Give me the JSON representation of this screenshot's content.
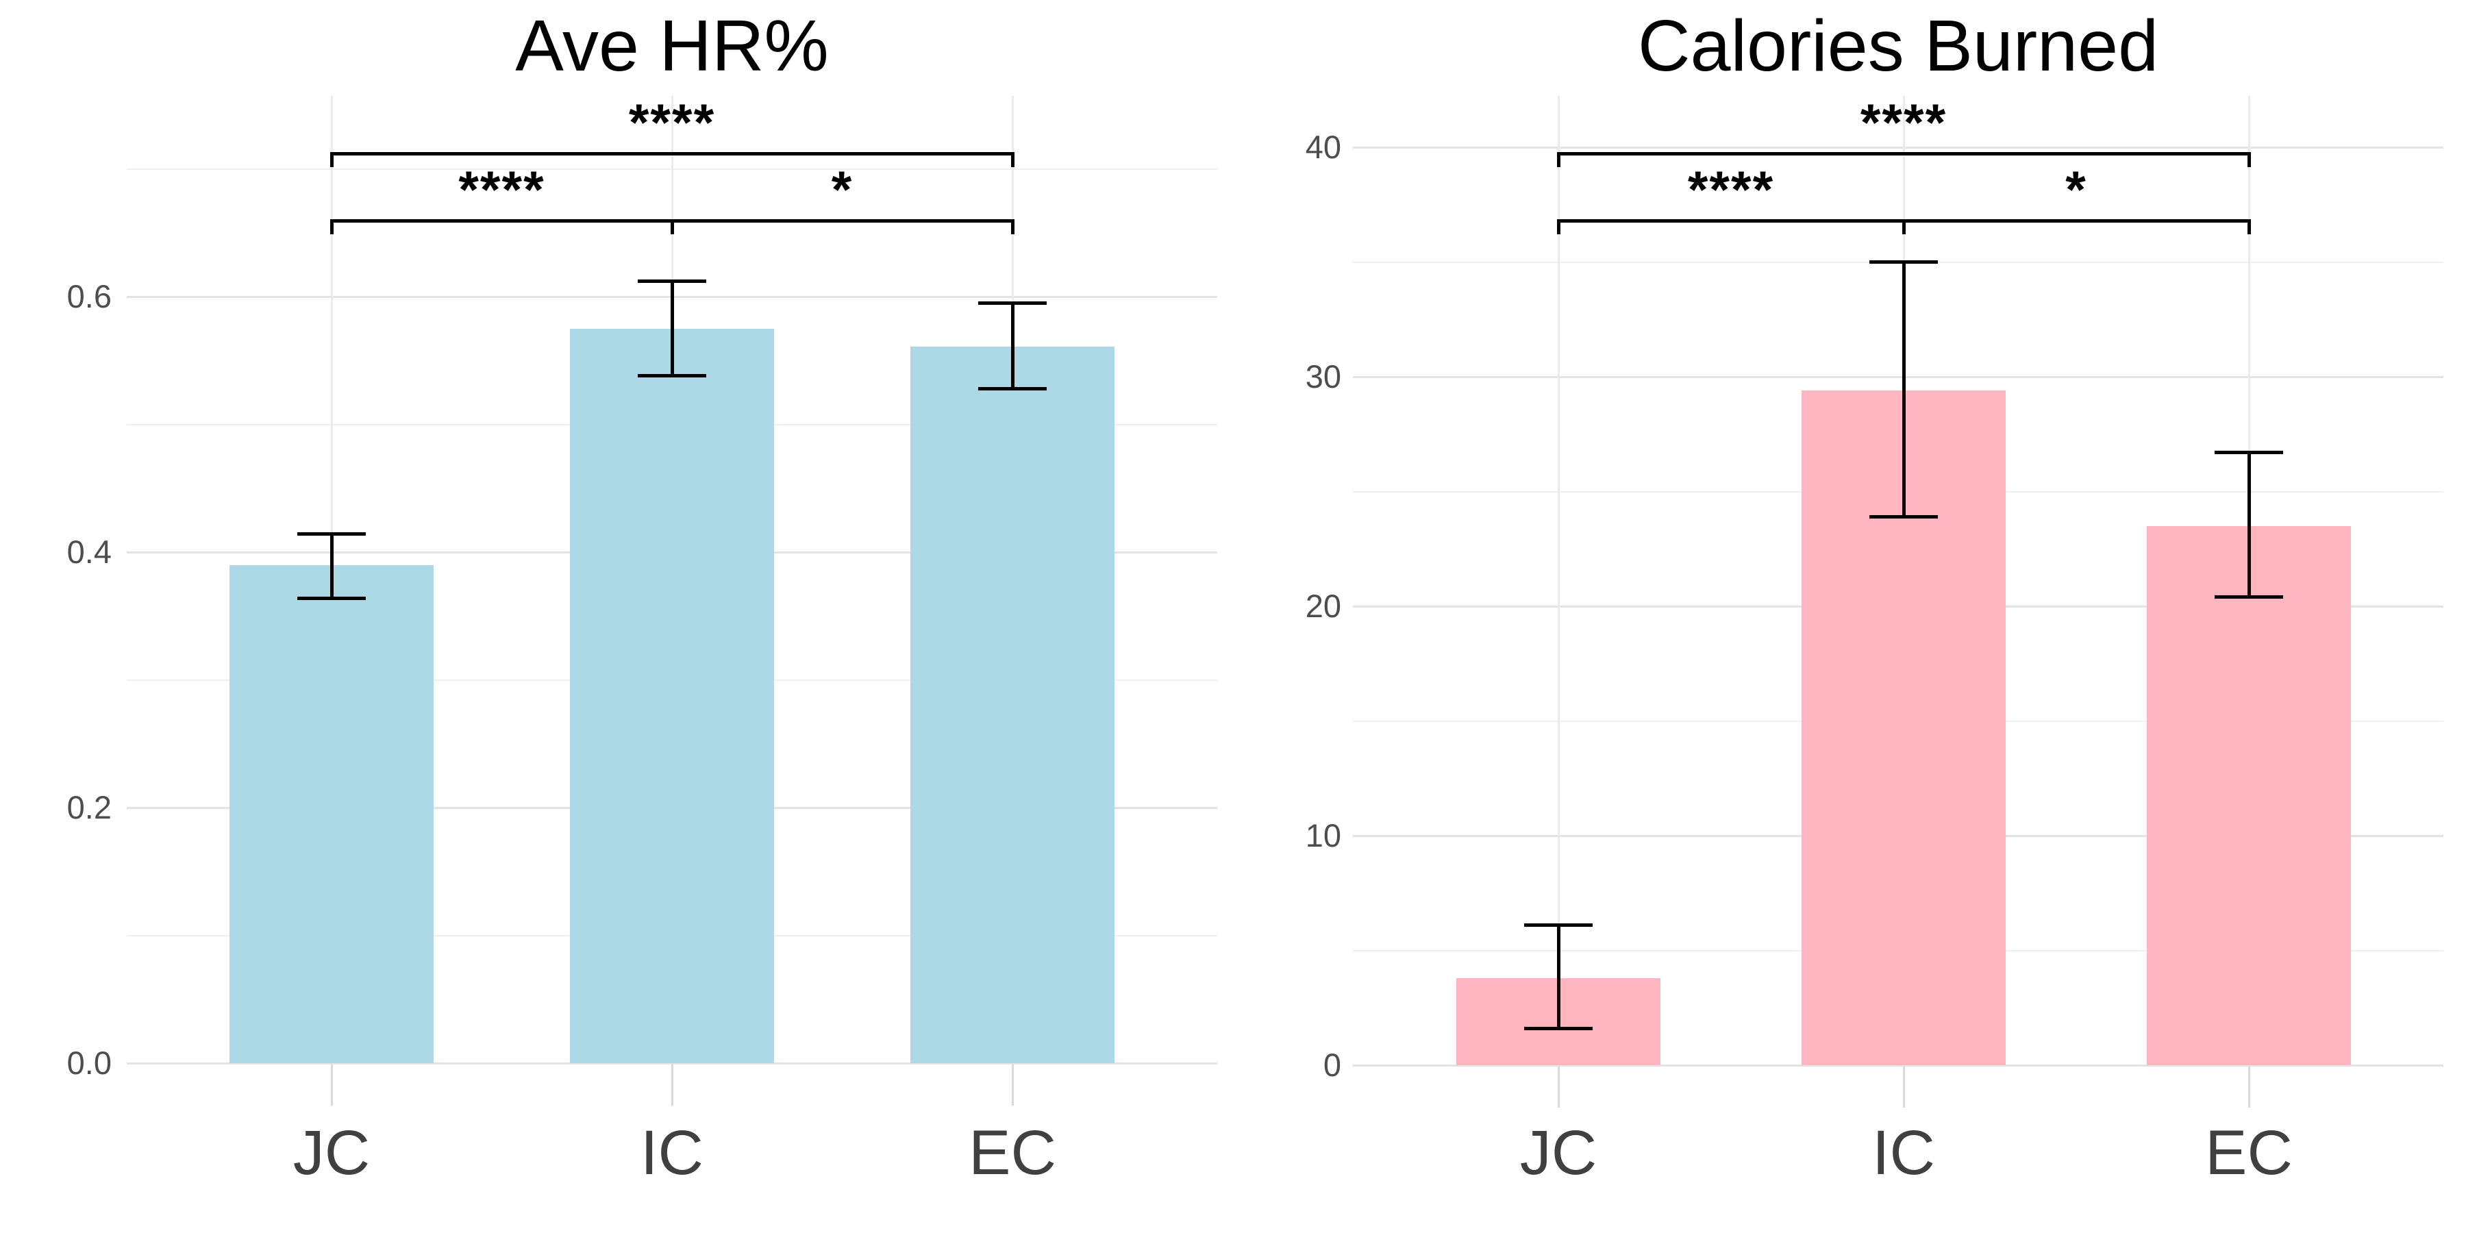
{
  "page": {
    "background": "#ffffff",
    "description": "Two-panel bar chart with error bars and significance brackets"
  },
  "chart_data": [
    {
      "type": "bar",
      "title": "Ave HR%",
      "categories": [
        "JC",
        "IC",
        "EC"
      ],
      "values": [
        0.39,
        0.575,
        0.561
      ],
      "error_upper": [
        0.414,
        0.612,
        0.595
      ],
      "error_lower": [
        0.364,
        0.538,
        0.528
      ],
      "bar_color": "#ADD8E6",
      "bar_edge": "none",
      "ylim": [
        0,
        0.7
      ],
      "yticks_major": [
        0.0,
        0.2,
        0.4,
        0.6
      ],
      "ytick_labels": [
        "0.0",
        "0.2",
        "0.4",
        "0.6"
      ],
      "yticks_minor": [
        0.1,
        0.3,
        0.5,
        0.7
      ],
      "xlabel": "",
      "ylabel": "",
      "grid": "horizontal major+minor, vertical at categories",
      "legend_position": "none",
      "significance": [
        {
          "group1": "JC",
          "group2": "EC",
          "label": "****",
          "level": 1
        },
        {
          "group1": "JC",
          "group2": "IC",
          "label": "****",
          "level": 2
        },
        {
          "group1": "IC",
          "group2": "EC",
          "label": "*",
          "level": 2
        }
      ]
    },
    {
      "type": "bar",
      "title": "Calories Burned",
      "categories": [
        "JC",
        "IC",
        "EC"
      ],
      "values": [
        3.8,
        29.4,
        23.5
      ],
      "error_upper": [
        6.1,
        35.0,
        26.7
      ],
      "error_lower": [
        1.6,
        23.9,
        20.4
      ],
      "bar_color": "#FFB6C1",
      "bar_edge": "none",
      "ylim": [
        0,
        40
      ],
      "yticks_major": [
        0,
        10,
        20,
        30,
        40
      ],
      "ytick_labels": [
        "0",
        "10",
        "20",
        "30",
        "40"
      ],
      "yticks_minor": [
        5,
        15,
        25,
        35
      ],
      "xlabel": "",
      "ylabel": "",
      "grid": "horizontal major+minor, vertical at categories",
      "legend_position": "none",
      "significance": [
        {
          "group1": "JC",
          "group2": "EC",
          "label": "****",
          "level": 1
        },
        {
          "group1": "JC",
          "group2": "IC",
          "label": "****",
          "level": 2
        },
        {
          "group1": "IC",
          "group2": "EC",
          "label": "*",
          "level": 2
        }
      ]
    }
  ],
  "colors": {
    "left_bar": "#ADD8E6",
    "right_bar": "#FFB6C1",
    "error_bar": "#000000",
    "bracket": "#000000",
    "axis_text": "#4d4d4d",
    "category_text": "#404040",
    "grid_major": "#e3e3e3",
    "grid_minor": "#f0f0f0",
    "title_text": "#000000"
  }
}
